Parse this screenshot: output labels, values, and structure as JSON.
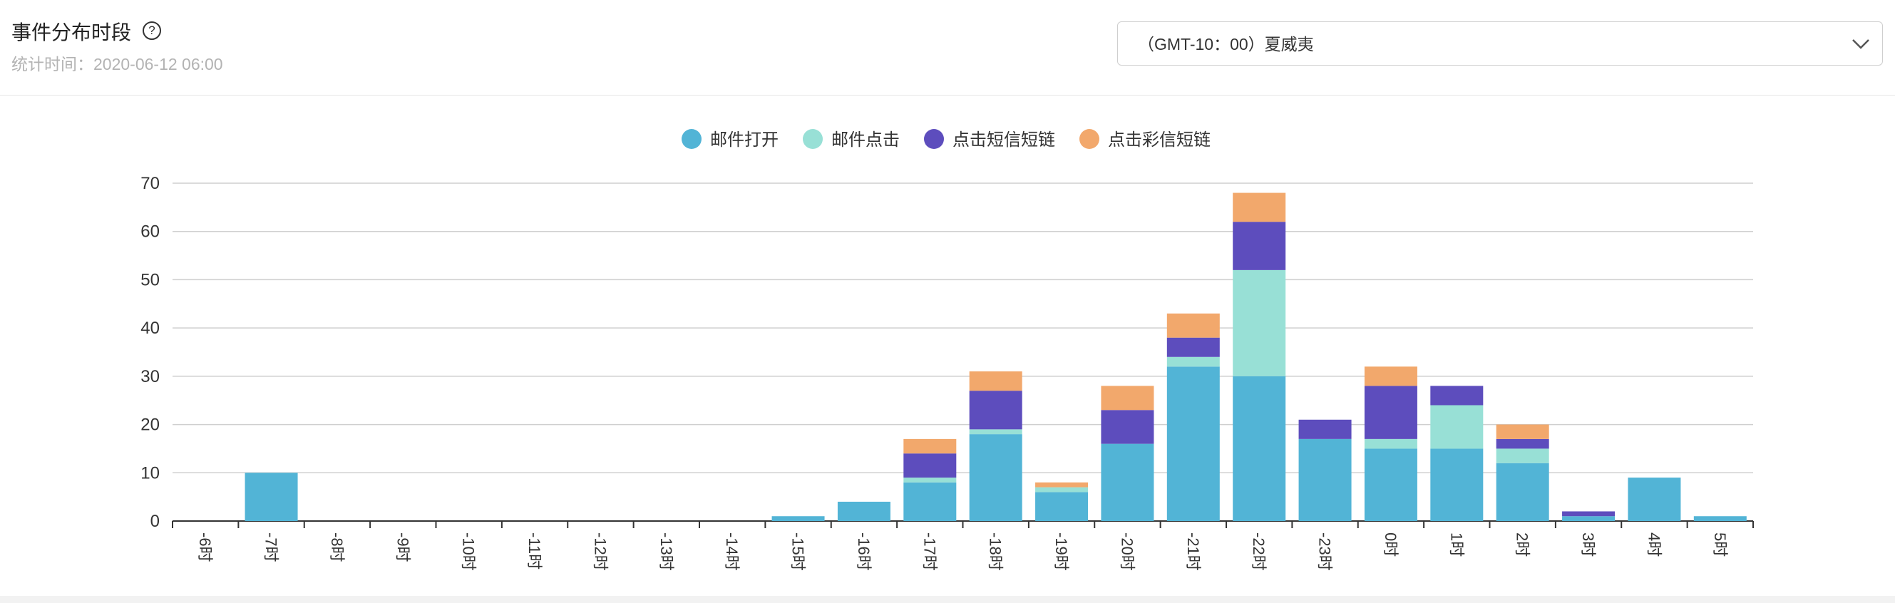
{
  "header": {
    "title": "事件分布时段",
    "help_icon": "question-circle-icon",
    "subtitle": "统计时间：2020-06-12 06:00",
    "timezone_value": "（GMT-10：00）夏威夷",
    "timezone_icon": "chevron-down-icon"
  },
  "colors": {
    "邮件打开": "#52b4d6",
    "邮件点击": "#98e0d6",
    "点击短信短链": "#5d4dbd",
    "点击彩信短链": "#f2a86c"
  },
  "chart_data": {
    "type": "bar",
    "stacked": true,
    "categories": [
      "-6时",
      "-7时",
      "-8时",
      "-9时",
      "-10时",
      "-11时",
      "-12时",
      "-13时",
      "-14时",
      "-15时",
      "-16时",
      "-17时",
      "-18时",
      "-19时",
      "-20时",
      "-21时",
      "-22时",
      "-23时",
      "0时",
      "1时",
      "2时",
      "3时",
      "4时",
      "5时"
    ],
    "series": [
      {
        "name": "邮件打开",
        "values": [
          0,
          10,
          0,
          0,
          0,
          0,
          0,
          0,
          0,
          1,
          4,
          8,
          18,
          6,
          16,
          32,
          30,
          17,
          15,
          15,
          12,
          1,
          9,
          1
        ]
      },
      {
        "name": "邮件点击",
        "values": [
          0,
          0,
          0,
          0,
          0,
          0,
          0,
          0,
          0,
          0,
          0,
          1,
          1,
          1,
          0,
          2,
          22,
          0,
          2,
          9,
          3,
          0,
          0,
          0
        ]
      },
      {
        "name": "点击短信短链",
        "values": [
          0,
          0,
          0,
          0,
          0,
          0,
          0,
          0,
          0,
          0,
          0,
          5,
          8,
          0,
          7,
          4,
          10,
          4,
          11,
          4,
          2,
          1,
          0,
          0
        ]
      },
      {
        "name": "点击彩信短链",
        "values": [
          0,
          0,
          0,
          0,
          0,
          0,
          0,
          0,
          0,
          0,
          0,
          3,
          4,
          1,
          5,
          5,
          6,
          0,
          4,
          0,
          3,
          0,
          0,
          0
        ]
      }
    ],
    "ylim": [
      0,
      70
    ],
    "yticks": [
      0,
      10,
      20,
      30,
      40,
      50,
      60,
      70
    ],
    "grid": true,
    "legend_position": "top-center"
  }
}
